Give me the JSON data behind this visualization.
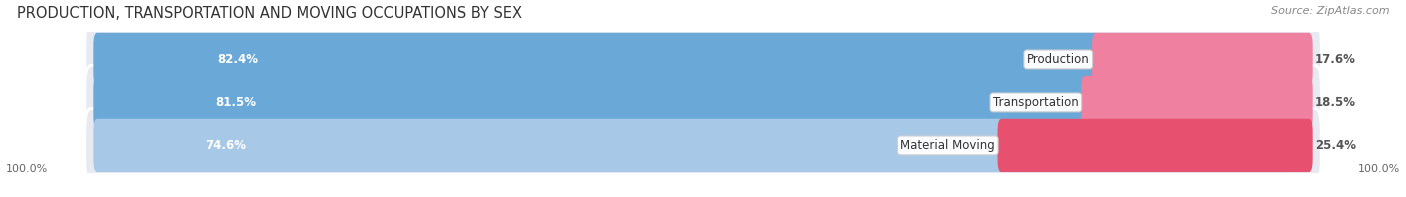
{
  "title": "PRODUCTION, TRANSPORTATION AND MOVING OCCUPATIONS BY SEX",
  "source": "Source: ZipAtlas.com",
  "categories": [
    "Production",
    "Transportation",
    "Material Moving"
  ],
  "male_values": [
    82.4,
    81.5,
    74.6
  ],
  "female_values": [
    17.6,
    18.5,
    25.4
  ],
  "male_color_prod": "#6aa8d8",
  "male_color_trans": "#6aa8d8",
  "male_color_mat": "#a8c8e8",
  "female_color_prod": "#f08098",
  "female_color_trans": "#f08098",
  "female_color_mat": "#e85878",
  "male_colors": [
    "#6aa8d8",
    "#6aa8d8",
    "#a8c8e8"
  ],
  "female_colors": [
    "#f080a0",
    "#f080a0",
    "#e85070"
  ],
  "bar_bg_color": "#e8eaf0",
  "title_fontsize": 10.5,
  "source_fontsize": 8,
  "bar_label_fontsize": 8.5,
  "cat_label_fontsize": 8.5,
  "axis_label_fontsize": 8,
  "background_color": "#f0f0f0",
  "bar_background": "#e0e4ec"
}
